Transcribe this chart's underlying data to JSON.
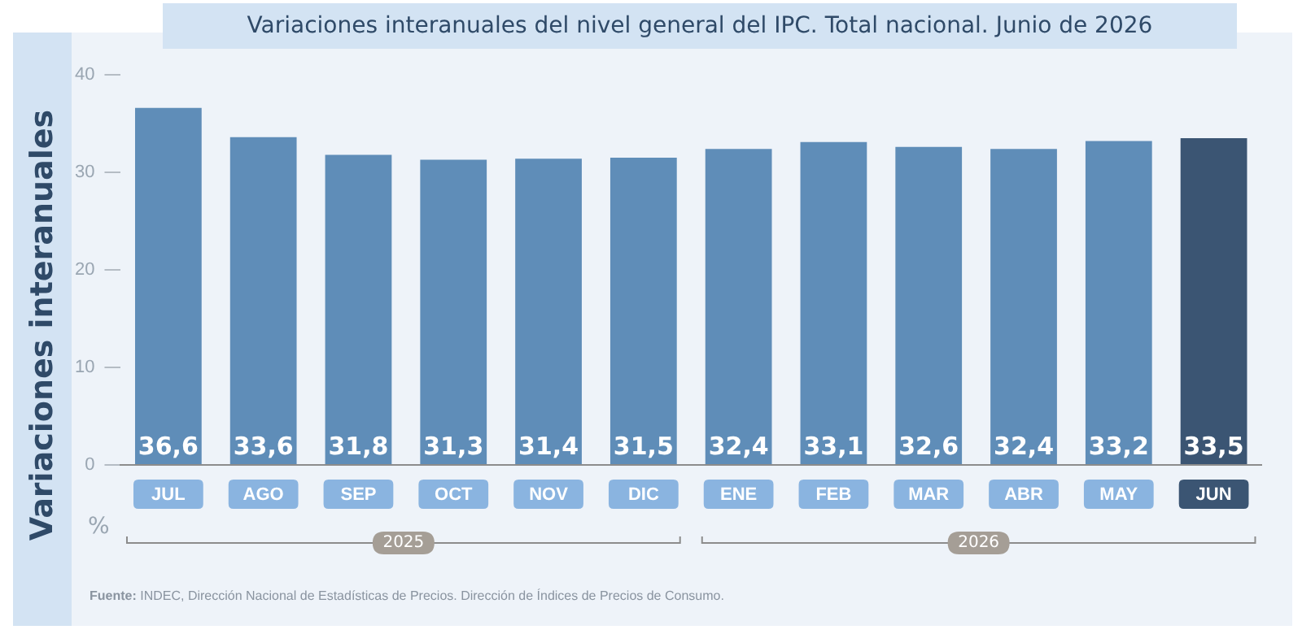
{
  "chart_data": {
    "type": "bar",
    "title": "Variaciones interanuales del nivel general del IPC. Total nacional. Junio de 2026",
    "ylabel": "Variaciones interanuales",
    "categories": [
      "JUL",
      "AGO",
      "SEP",
      "OCT",
      "NOV",
      "DIC",
      "ENE",
      "FEB",
      "MAR",
      "ABR",
      "MAY",
      "JUN"
    ],
    "values": [
      36.6,
      33.6,
      31.8,
      31.3,
      31.4,
      31.5,
      32.4,
      33.1,
      32.6,
      32.4,
      33.2,
      33.5
    ],
    "color": "#5f8db8",
    "colors": [
      "#5f8db8",
      "#5f8db8",
      "#5f8db8",
      "#5f8db8",
      "#5f8db8",
      "#5f8db8",
      "#5f8db8",
      "#5f8db8",
      "#5f8db8",
      "#5f8db8",
      "#5f8db8",
      "#3b5573"
    ],
    "value_labels": [
      "36,6",
      "33,6",
      "31,8",
      "31,3",
      "31,4",
      "31,5",
      "32,4",
      "33,1",
      "32,6",
      "32,4",
      "33,2",
      "33,5"
    ],
    "ylim": [
      0,
      40
    ],
    "yticks": [
      0,
      10,
      20,
      30,
      40
    ],
    "grid": false,
    "legend": false,
    "annotations": [
      "%",
      "2025",
      "2026",
      "Fuente: INDEC, Dirección Nacional de Estadísticas de Precios. Dirección de Índices de Precios de Consumo."
    ]
  }
}
